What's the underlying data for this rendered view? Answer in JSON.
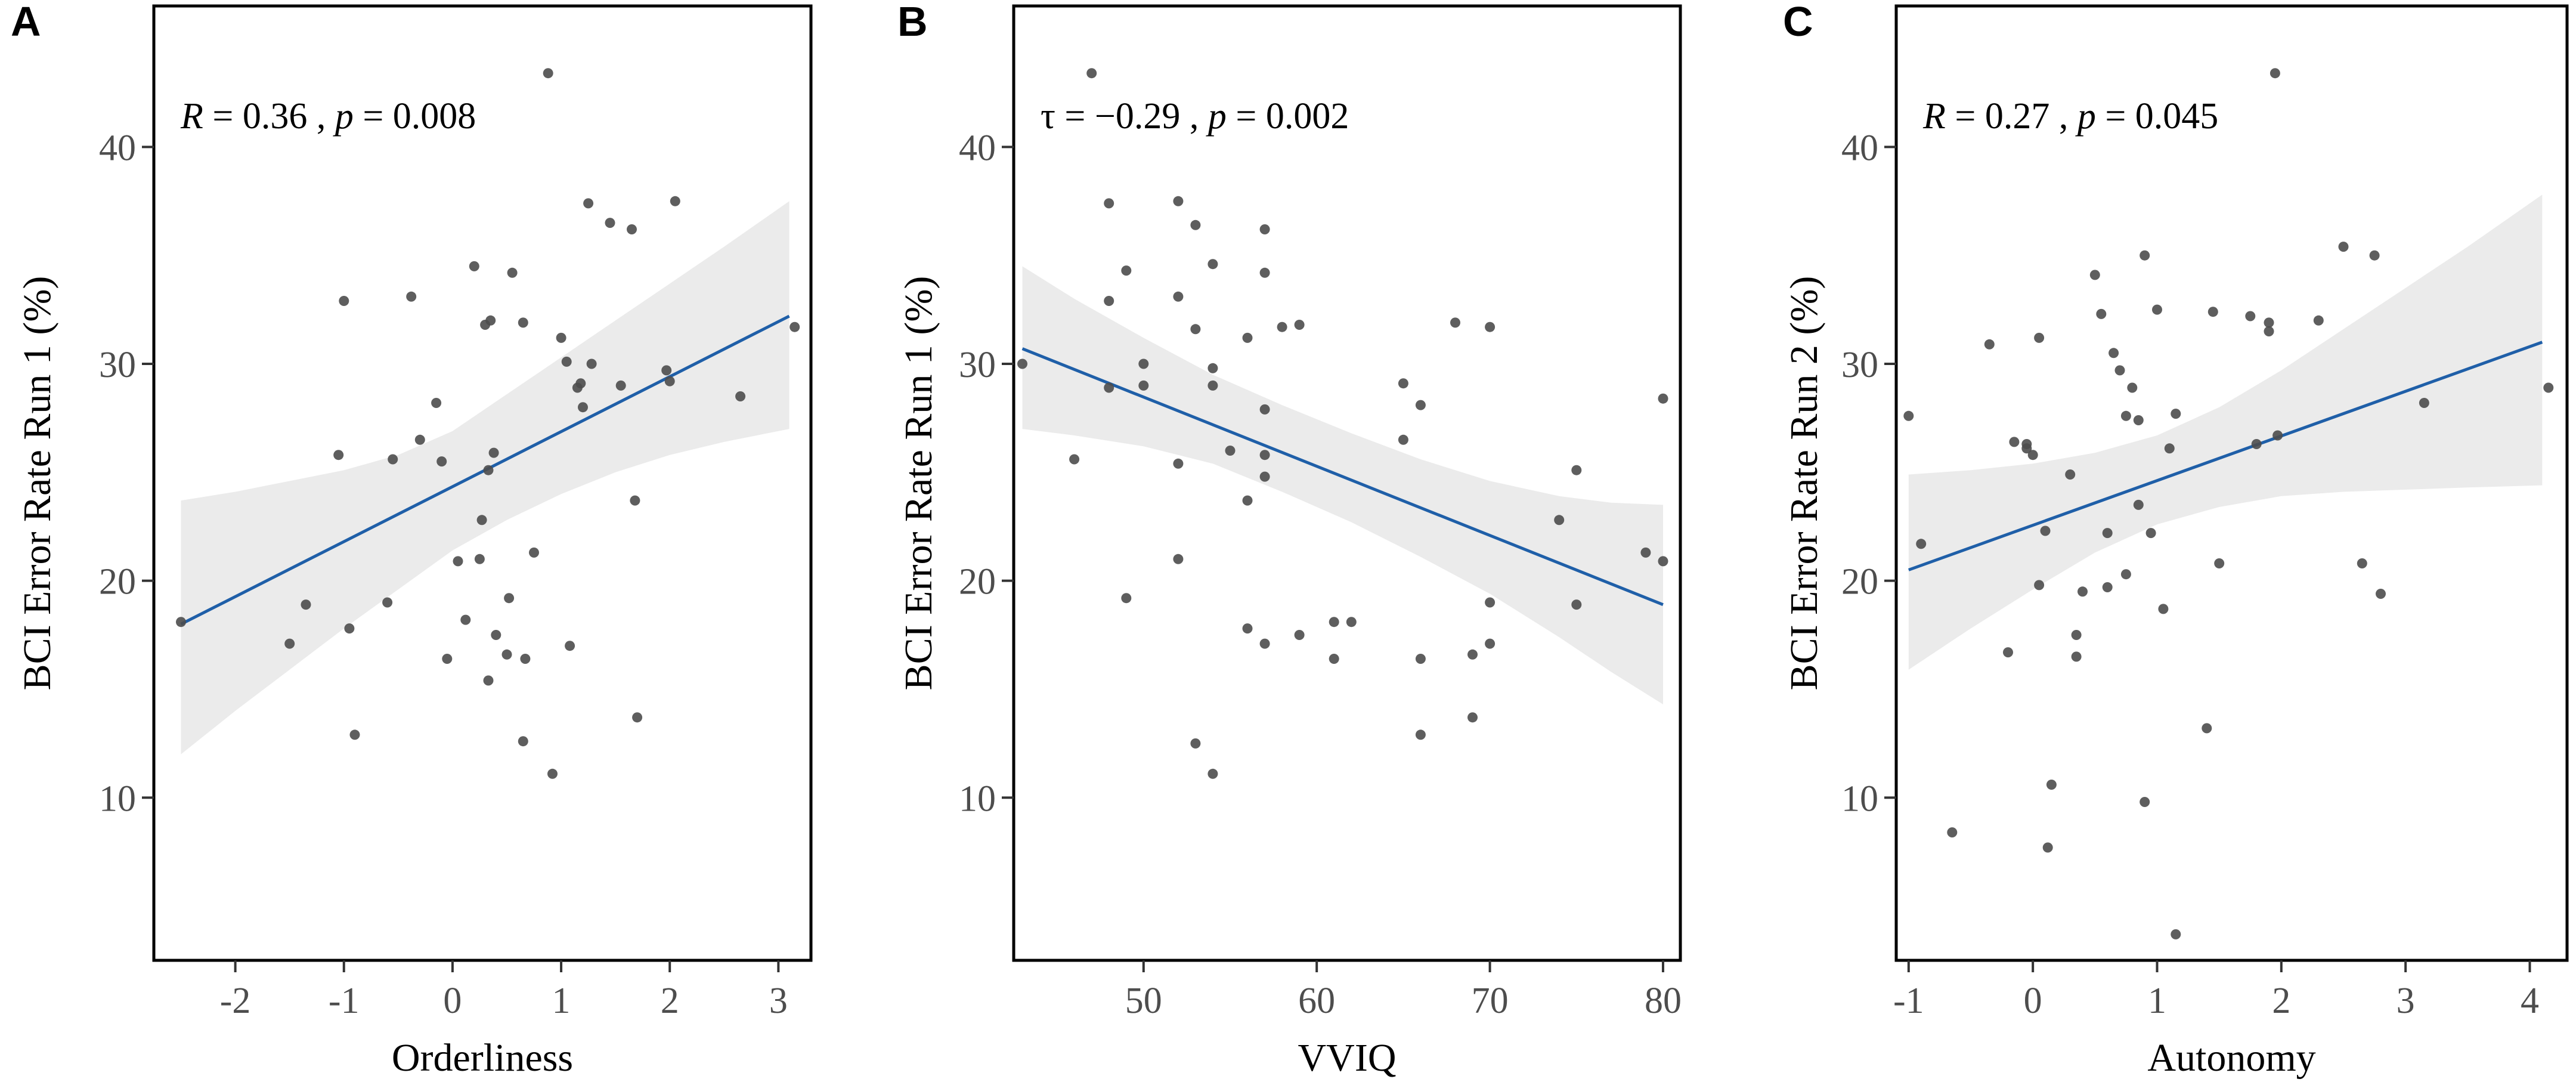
{
  "chart_data": [
    {
      "type": "scatter",
      "panel_label": "A",
      "annotation": {
        "stat_symbol": "R",
        "stat_value": "= 0.36",
        "separator": ",",
        "p_symbol": "p",
        "p_value": "= 0.008"
      },
      "xlabel": "Orderliness",
      "ylabel": "BCI Error Rate Run 1 (%)",
      "xlim": [
        -2.75,
        3.3
      ],
      "ylim": [
        2.5,
        46.5
      ],
      "xticks": [
        -2,
        -1,
        0,
        1,
        2,
        3
      ],
      "xtick_labels": [
        "-2",
        "-1",
        "0",
        "1",
        "2",
        "3"
      ],
      "yticks": [
        10,
        20,
        30,
        40
      ],
      "ytick_labels": [
        "10",
        "20",
        "30",
        "40"
      ],
      "regression": {
        "x": [
          -2.5,
          3.1
        ],
        "y": [
          18.0,
          32.2
        ]
      },
      "confidence_band": {
        "x": [
          -2.5,
          -2.0,
          -1.5,
          -1.0,
          -0.5,
          0.0,
          0.5,
          1.0,
          1.5,
          2.0,
          2.5,
          3.1
        ],
        "upper": [
          23.7,
          24.1,
          24.6,
          25.1,
          25.8,
          26.9,
          28.6,
          30.3,
          32.0,
          33.7,
          35.4,
          37.5
        ],
        "lower": [
          12.0,
          14.0,
          15.9,
          17.8,
          19.6,
          21.4,
          22.8,
          24.0,
          25.0,
          25.8,
          26.4,
          27.0
        ]
      },
      "points": {
        "x": [
          -2.5,
          -1.5,
          -1.35,
          -1.05,
          -1.0,
          -0.95,
          -0.9,
          -0.6,
          -0.55,
          -0.38,
          -0.3,
          -0.15,
          -0.1,
          -0.05,
          0.05,
          0.12,
          0.2,
          0.25,
          0.27,
          0.3,
          0.33,
          0.33,
          0.35,
          0.38,
          0.4,
          0.5,
          0.52,
          0.55,
          0.65,
          0.65,
          0.67,
          0.75,
          0.92,
          1.0,
          1.05,
          1.08,
          1.15,
          1.18,
          1.2,
          1.25,
          1.28,
          1.45,
          1.55,
          1.65,
          1.68,
          1.7,
          1.97,
          2.0,
          2.05,
          2.65,
          3.15,
          0.88
        ],
        "y": [
          18.1,
          17.1,
          18.9,
          25.8,
          32.9,
          17.8,
          12.9,
          19.0,
          25.6,
          33.1,
          26.5,
          28.2,
          25.5,
          16.4,
          20.9,
          18.2,
          34.5,
          21.0,
          22.8,
          31.8,
          25.1,
          15.4,
          32.0,
          25.9,
          17.5,
          16.6,
          19.2,
          34.2,
          31.9,
          12.6,
          16.4,
          21.3,
          11.1,
          31.2,
          30.1,
          17.0,
          28.9,
          29.1,
          28.0,
          37.4,
          30.0,
          36.5,
          29.0,
          36.2,
          23.7,
          13.7,
          29.7,
          29.2,
          37.5,
          28.5,
          31.7,
          43.4
        ]
      }
    },
    {
      "type": "scatter",
      "panel_label": "B",
      "annotation": {
        "stat_symbol": "τ",
        "stat_value": "= −0.29",
        "separator": ",",
        "p_symbol": "p",
        "p_value": "= 0.002"
      },
      "xlabel": "VVIQ",
      "ylabel": "BCI Error Rate Run 1 (%)",
      "xlim": [
        42.5,
        81.0
      ],
      "ylim": [
        2.5,
        46.5
      ],
      "xticks": [
        50,
        60,
        70,
        80
      ],
      "xtick_labels": [
        "50",
        "60",
        "70",
        "80"
      ],
      "yticks": [
        10,
        20,
        30,
        40
      ],
      "ytick_labels": [
        "10",
        "20",
        "30",
        "40"
      ],
      "regression": {
        "x": [
          43,
          80
        ],
        "y": [
          30.7,
          18.9
        ]
      },
      "confidence_band": {
        "x": [
          43,
          46,
          50,
          54,
          58,
          62,
          66,
          70,
          74,
          77,
          80
        ],
        "upper": [
          34.5,
          33.0,
          31.2,
          29.5,
          28.1,
          26.8,
          25.6,
          24.6,
          23.9,
          23.6,
          23.5
        ],
        "lower": [
          27.0,
          26.7,
          26.2,
          25.4,
          24.1,
          22.7,
          21.1,
          19.4,
          17.4,
          15.8,
          14.3
        ]
      },
      "points": {
        "x": [
          43,
          46,
          47,
          48,
          48,
          48,
          49,
          49,
          50,
          50,
          52,
          52,
          52,
          52,
          53,
          53,
          53,
          54,
          54,
          54,
          54,
          55,
          56,
          56,
          56,
          57,
          57,
          57,
          57,
          57,
          57,
          58,
          59,
          59,
          61,
          61,
          62,
          65,
          65,
          66,
          66,
          66,
          68,
          69,
          69,
          70,
          70,
          70,
          74,
          75,
          75,
          79,
          80,
          80
        ],
        "y": [
          30.0,
          25.6,
          43.4,
          37.4,
          32.9,
          28.9,
          34.3,
          19.2,
          30.0,
          29.0,
          37.5,
          33.1,
          25.4,
          21.0,
          36.4,
          31.6,
          12.5,
          34.6,
          29.0,
          29.8,
          11.1,
          26.0,
          31.2,
          23.7,
          17.8,
          36.2,
          34.2,
          27.9,
          25.8,
          24.8,
          17.1,
          31.7,
          31.8,
          17.5,
          18.1,
          16.4,
          18.1,
          29.1,
          26.5,
          28.1,
          16.4,
          12.9,
          31.9,
          16.6,
          13.7,
          31.7,
          19.0,
          17.1,
          22.8,
          25.1,
          18.9,
          21.3,
          28.4,
          20.9
        ]
      }
    },
    {
      "type": "scatter",
      "panel_label": "C",
      "annotation": {
        "stat_symbol": "R",
        "stat_value": "= 0.27",
        "separator": ",",
        "p_symbol": "p",
        "p_value": "= 0.045"
      },
      "xlabel": "Autonomy",
      "ylabel": "BCI Error Rate Run 2 (%)",
      "xlim": [
        -1.1,
        4.3
      ],
      "ylim": [
        2.5,
        46.5
      ],
      "xticks": [
        -1,
        0,
        1,
        2,
        3,
        4
      ],
      "xtick_labels": [
        "-1",
        "0",
        "1",
        "2",
        "3",
        "4"
      ],
      "yticks": [
        10,
        20,
        30,
        40
      ],
      "ytick_labels": [
        "10",
        "20",
        "30",
        "40"
      ],
      "regression": {
        "x": [
          -1.0,
          4.1
        ],
        "y": [
          20.5,
          31.0
        ]
      },
      "confidence_band": {
        "x": [
          -1.0,
          -0.5,
          0.0,
          0.5,
          1.0,
          1.5,
          2.0,
          2.5,
          3.0,
          3.5,
          4.1
        ],
        "upper": [
          24.9,
          25.1,
          25.4,
          25.9,
          26.7,
          28.0,
          29.7,
          31.6,
          33.5,
          35.4,
          37.8
        ],
        "lower": [
          15.9,
          17.8,
          19.6,
          21.3,
          22.6,
          23.4,
          23.9,
          24.1,
          24.2,
          24.3,
          24.4
        ]
      },
      "points": {
        "x": [
          -1.0,
          -0.9,
          -0.65,
          -0.35,
          -0.2,
          -0.15,
          -0.05,
          -0.05,
          0.0,
          0.05,
          0.1,
          0.12,
          0.15,
          0.3,
          0.35,
          0.35,
          0.4,
          0.5,
          0.55,
          0.6,
          0.65,
          0.7,
          0.75,
          0.75,
          0.8,
          0.85,
          0.85,
          0.9,
          0.9,
          0.95,
          1.0,
          1.05,
          1.1,
          1.15,
          1.15,
          1.4,
          1.45,
          1.5,
          1.75,
          1.8,
          1.9,
          1.9,
          1.95,
          1.97,
          2.3,
          2.5,
          2.65,
          2.75,
          2.8,
          3.15,
          4.15,
          0.05,
          0.6
        ],
        "y": [
          27.6,
          21.7,
          8.4,
          30.9,
          16.7,
          26.4,
          26.3,
          26.1,
          25.8,
          19.8,
          22.3,
          7.7,
          10.6,
          24.9,
          17.5,
          16.5,
          19.5,
          34.1,
          32.3,
          19.7,
          30.5,
          29.7,
          20.3,
          27.6,
          28.9,
          23.5,
          27.4,
          9.8,
          35.0,
          22.2,
          32.5,
          18.7,
          26.1,
          3.7,
          27.7,
          13.2,
          32.4,
          20.8,
          32.2,
          26.3,
          31.9,
          31.5,
          43.4,
          26.7,
          32.0,
          35.4,
          20.8,
          35.0,
          19.4,
          28.2,
          28.9,
          31.2,
          22.2
        ]
      }
    }
  ]
}
